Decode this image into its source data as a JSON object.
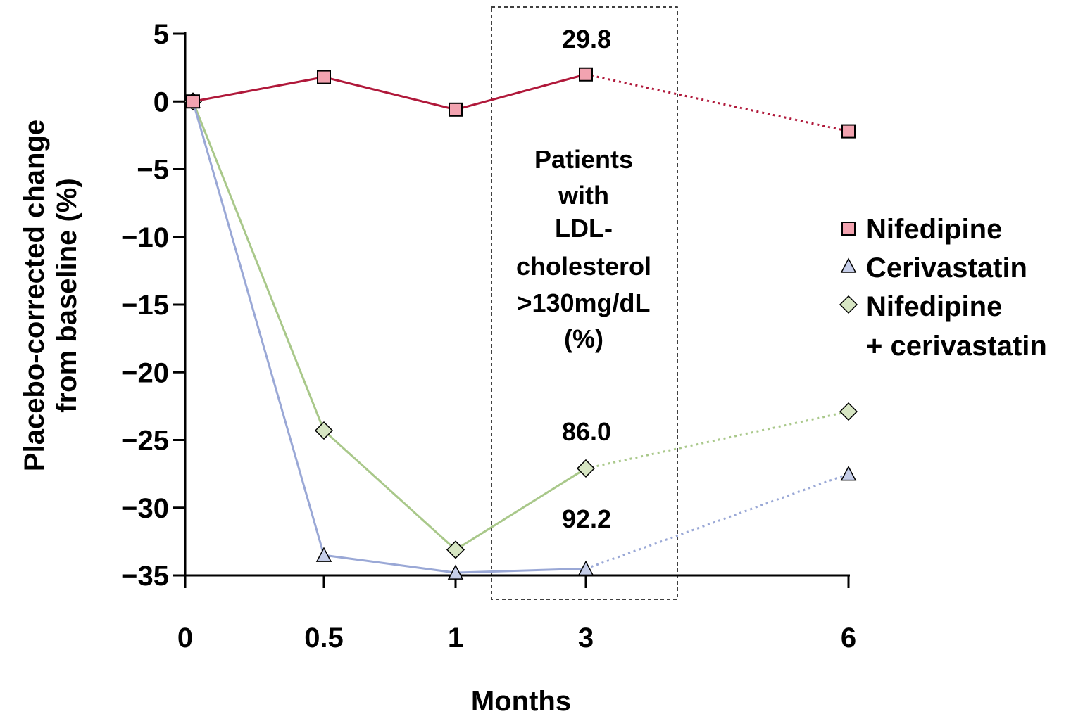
{
  "chart_data": {
    "type": "line",
    "title": "",
    "xlabel": "Months",
    "ylabel": [
      "Placebo-corrected change",
      "from baseline (%)"
    ],
    "categories": [
      "0",
      "0.5",
      "1",
      "3",
      "6"
    ],
    "ylim": [
      -35,
      5
    ],
    "yticks": [
      "5",
      "0",
      "−5",
      "−10",
      "−15",
      "−20",
      "−25",
      "−30",
      "−35"
    ],
    "ytick_values": [
      5,
      0,
      -5,
      -10,
      -15,
      -20,
      -25,
      -30,
      -35
    ],
    "grid": false,
    "legend_position": "right",
    "series": [
      {
        "name": "Nifedipine",
        "values": [
          0,
          1.8,
          -0.6,
          2.0,
          -2.2
        ],
        "color": "#b0183a",
        "marker_fill": "#f2a3b0",
        "marker": "square",
        "dotted_from_index": 3
      },
      {
        "name": "Cerivastatin",
        "values": [
          0,
          -33.5,
          -34.8,
          -34.5,
          -27.5
        ],
        "color": "#9aa8d6",
        "marker_fill": "#c5cde8",
        "marker": "triangle",
        "dotted_from_index": 3
      },
      {
        "name": "Nifedipine + cerivastatin",
        "values": [
          0,
          -24.3,
          -33.1,
          -27.1,
          -22.9
        ],
        "color": "#a9c88a",
        "marker_fill": "#d7e6c3",
        "marker": "diamond",
        "dotted_from_index": 3
      }
    ],
    "annotation_box": {
      "lines": [
        "Patients",
        "with",
        "LDL-",
        "cholesterol",
        ">130mg/dL",
        "(%)"
      ],
      "values": [
        "29.8",
        "86.0",
        "92.2"
      ]
    },
    "legend": {
      "items": [
        {
          "lines": [
            "Nifedipine"
          ],
          "marker": "square"
        },
        {
          "lines": [
            "Cerivastatin"
          ],
          "marker": "triangle"
        },
        {
          "lines": [
            "Nifedipine",
            "+ cerivastatin"
          ],
          "marker": "diamond"
        }
      ]
    }
  }
}
